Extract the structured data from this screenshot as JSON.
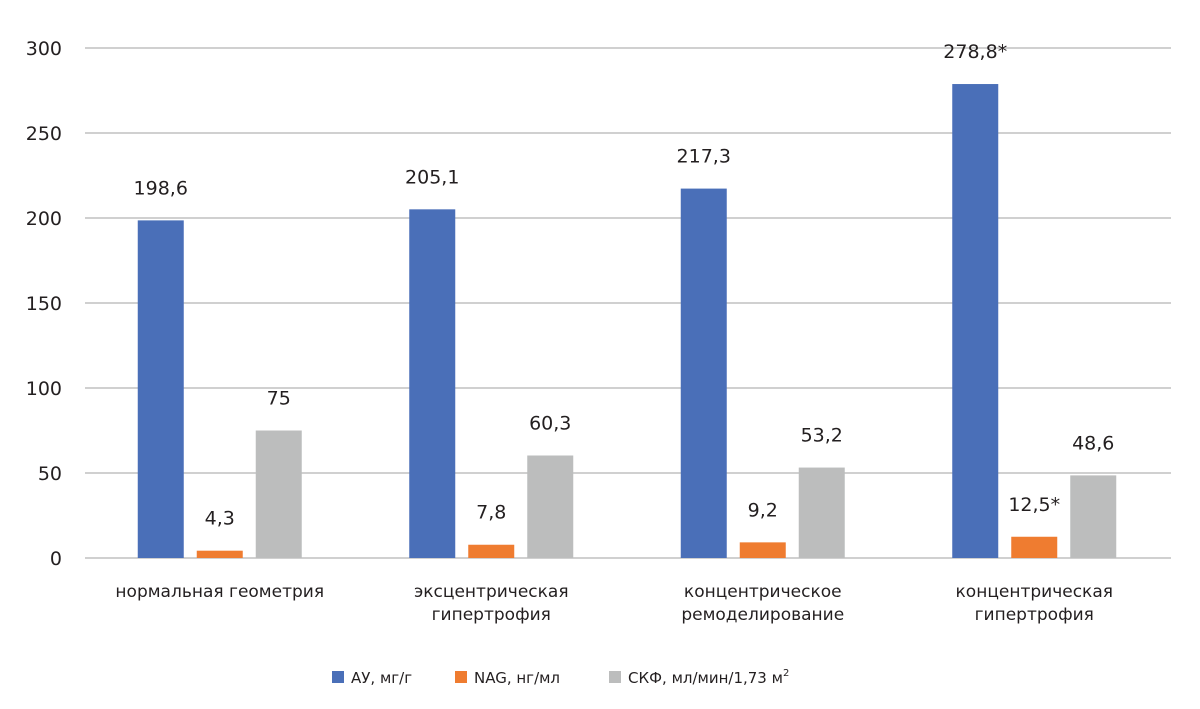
{
  "chart_data": {
    "type": "bar",
    "title": "",
    "xlabel": "",
    "ylabel": "",
    "ylim": [
      0,
      300
    ],
    "yticks": [
      0,
      50,
      100,
      150,
      200,
      250,
      300
    ],
    "grid": true,
    "legend_position": "bottom",
    "categories": [
      [
        "нормальная геометрия"
      ],
      [
        "эксцентрическая",
        "гипертрофия"
      ],
      [
        "концентрическое",
        "ремоделирование"
      ],
      [
        "концентрическая",
        "гипертрофия"
      ]
    ],
    "series": [
      {
        "name": "АУ, мг/г",
        "color": "#4a6fb8",
        "values": [
          198.6,
          205.1,
          217.3,
          278.8
        ],
        "labels": [
          "198,6",
          "205,1",
          "217,3",
          "278,8*"
        ]
      },
      {
        "name": "NAG, нг/мл",
        "color": "#ef7c30",
        "values": [
          4.3,
          7.8,
          9.2,
          12.5
        ],
        "labels": [
          "4,3",
          "7,8",
          "9,2",
          "12,5*"
        ]
      },
      {
        "name": "СКФ, мл/мин/1,73 м",
        "name_superscript": "2",
        "color": "#bcbdbd",
        "values": [
          75,
          60.3,
          53.2,
          48.6
        ],
        "labels": [
          "75",
          "60,3",
          "53,2",
          "48,6"
        ]
      }
    ]
  }
}
